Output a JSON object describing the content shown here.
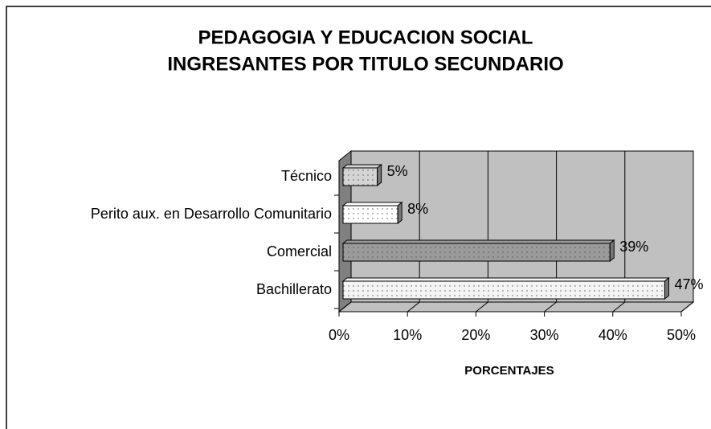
{
  "chart_data": {
    "type": "bar3d_horizontal",
    "title": [
      "PEDAGOGIA Y EDUCACION SOCIAL",
      "INGRESANTES POR TITULO SECUNDARIO"
    ],
    "categories": [
      "Técnico",
      "Perito aux. en Desarrollo Comunitario",
      "Comercial",
      "Bachillerato"
    ],
    "values": [
      5,
      8,
      39,
      47
    ],
    "value_labels": [
      "5%",
      "8%",
      "39%",
      "47%"
    ],
    "colors": [
      "#d4d4d4",
      "#ffffff",
      "#9a9a9a",
      "#f4f4f4"
    ],
    "xlabel": "PORCENTAJES",
    "xlim": [
      0,
      50
    ],
    "xticks": [
      {
        "value": 0,
        "label": "0%"
      },
      {
        "value": 10,
        "label": "10%"
      },
      {
        "value": 20,
        "label": "20%"
      },
      {
        "value": 30,
        "label": "30%"
      },
      {
        "value": 40,
        "label": "40%"
      },
      {
        "value": 50,
        "label": "50%"
      }
    ],
    "grid": true
  }
}
